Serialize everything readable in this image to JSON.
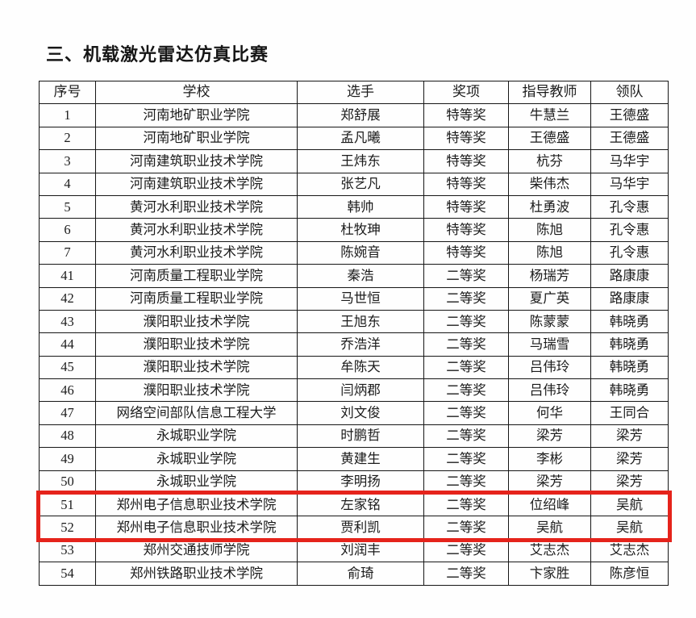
{
  "page": {
    "title": "三、机载激光雷达仿真比赛"
  },
  "table": {
    "column_keys": [
      "no",
      "school",
      "player",
      "award",
      "teacher",
      "leader"
    ],
    "headers": [
      "序号",
      "学校",
      "选手",
      "奖项",
      "指导教师",
      "领队"
    ],
    "rows": [
      [
        "1",
        "河南地矿职业学院",
        "郑舒展",
        "特等奖",
        "牛慧兰",
        "王德盛"
      ],
      [
        "2",
        "河南地矿职业学院",
        "孟凡曦",
        "特等奖",
        "王德盛",
        "王德盛"
      ],
      [
        "3",
        "河南建筑职业技术学院",
        "王炜东",
        "特等奖",
        "杭芬",
        "马华宇"
      ],
      [
        "4",
        "河南建筑职业技术学院",
        "张艺凡",
        "特等奖",
        "柴伟杰",
        "马华宇"
      ],
      [
        "5",
        "黄河水利职业技术学院",
        "韩帅",
        "特等奖",
        "杜勇波",
        "孔令惠"
      ],
      [
        "6",
        "黄河水利职业技术学院",
        "杜牧珅",
        "特等奖",
        "陈旭",
        "孔令惠"
      ],
      [
        "7",
        "黄河水利职业技术学院",
        "陈婉音",
        "特等奖",
        "陈旭",
        "孔令惠"
      ],
      [
        "41",
        "河南质量工程职业学院",
        "秦浩",
        "二等奖",
        "杨瑞芳",
        "路康康"
      ],
      [
        "42",
        "河南质量工程职业学院",
        "马世恒",
        "二等奖",
        "夏广英",
        "路康康"
      ],
      [
        "43",
        "濮阳职业技术学院",
        "王旭东",
        "二等奖",
        "陈蒙蒙",
        "韩晓勇"
      ],
      [
        "44",
        "濮阳职业技术学院",
        "乔浩洋",
        "二等奖",
        "马瑞雪",
        "韩晓勇"
      ],
      [
        "45",
        "濮阳职业技术学院",
        "牟陈天",
        "二等奖",
        "吕伟玲",
        "韩晓勇"
      ],
      [
        "46",
        "濮阳职业技术学院",
        "闫炳郡",
        "二等奖",
        "吕伟玲",
        "韩晓勇"
      ],
      [
        "47",
        "网络空间部队信息工程大学",
        "刘文俊",
        "二等奖",
        "何华",
        "王同合"
      ],
      [
        "48",
        "永城职业学院",
        "时鹏哲",
        "二等奖",
        "梁芳",
        "梁芳"
      ],
      [
        "49",
        "永城职业学院",
        "黄建生",
        "二等奖",
        "李彬",
        "梁芳"
      ],
      [
        "50",
        "永城职业学院",
        "李明扬",
        "二等奖",
        "梁芳",
        "梁芳"
      ],
      [
        "51",
        "郑州电子信息职业技术学院",
        "左家铭",
        "二等奖",
        "位绍峰",
        "吴航"
      ],
      [
        "52",
        "郑州电子信息职业技术学院",
        "贾利凯",
        "二等奖",
        "吴航",
        "吴航"
      ],
      [
        "53",
        "郑州交通技师学院",
        "刘润丰",
        "二等奖",
        "艾志杰",
        "艾志杰"
      ],
      [
        "54",
        "郑州铁路职业技术学院",
        "俞琦",
        "二等奖",
        "卞家胜",
        "陈彦恒"
      ]
    ],
    "highlighted_nos": [
      "51",
      "52"
    ],
    "highlight_color": "#e5231b"
  }
}
